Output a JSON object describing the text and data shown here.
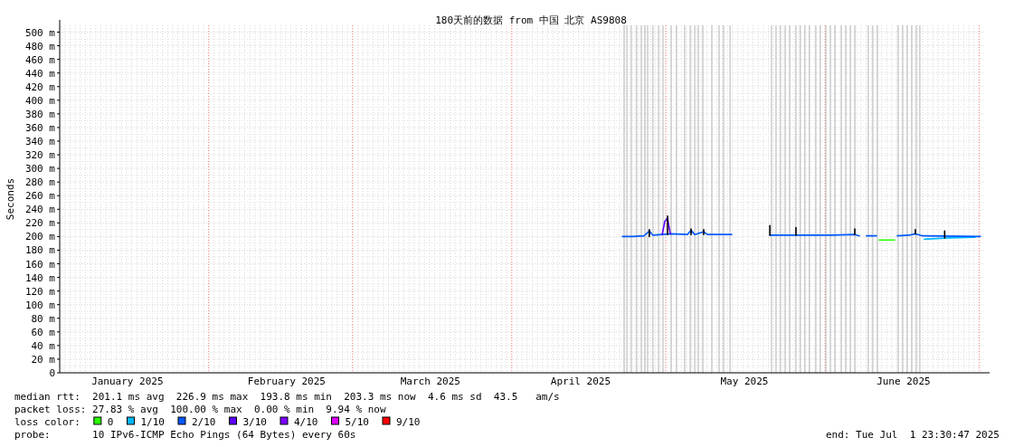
{
  "chart_data": {
    "type": "line",
    "title": "180天前的数据 from 中国 北京 AS9808",
    "ylabel": "Seconds",
    "xlim": [
      "2025-01-02T23:30",
      "2025-07-01T23:30"
    ],
    "xticks": [
      {
        "value": "2025-01-16T04:00",
        "label": "January 2025"
      },
      {
        "value": "2025-02-16T04:00",
        "label": "February 2025"
      },
      {
        "value": "2025-03-16T04:00",
        "label": "March 2025"
      },
      {
        "value": "2025-04-14T10:00",
        "label": "April 2025"
      },
      {
        "value": "2025-05-16T07:00",
        "label": "May 2025"
      },
      {
        "value": "2025-06-16T07:00",
        "label": "June 2025"
      }
    ],
    "ylim": [
      0,
      510
    ],
    "yticks": [
      0,
      {
        "value": 20,
        "label": "20 m"
      },
      {
        "value": 40,
        "label": "40 m"
      },
      {
        "value": 60,
        "label": "60 m"
      },
      {
        "value": 80,
        "label": "80 m"
      },
      {
        "value": 100,
        "label": "100 m"
      },
      {
        "value": 120,
        "label": "120 m"
      },
      {
        "value": 140,
        "label": "140 m"
      },
      {
        "value": 160,
        "label": "160 m"
      },
      {
        "value": 180,
        "label": "180 m"
      },
      {
        "value": 200,
        "label": "200 m"
      },
      {
        "value": 220,
        "label": "220 m"
      },
      {
        "value": 240,
        "label": "240 m"
      },
      {
        "value": 260,
        "label": "260 m"
      },
      {
        "value": 280,
        "label": "280 m"
      },
      {
        "value": 300,
        "label": "300 m"
      },
      {
        "value": 320,
        "label": "320 m"
      },
      {
        "value": 340,
        "label": "340 m"
      },
      {
        "value": 360,
        "label": "360 m"
      },
      {
        "value": 380,
        "label": "380 m"
      },
      {
        "value": 400,
        "label": "400 m"
      },
      {
        "value": 420,
        "label": "420 m"
      },
      {
        "value": 440,
        "label": "440 m"
      },
      {
        "value": 460,
        "label": "460 m"
      },
      {
        "value": 480,
        "label": "480 m"
      },
      {
        "value": 500,
        "label": "500 m"
      }
    ],
    "grid": true,
    "legend": "bottom",
    "legend_title": "loss color:",
    "series": [
      {
        "name": "0",
        "color": "#26ff00",
        "x": [
          "2025-06-11T13:00",
          "2025-06-14T13:00"
        ],
        "values": [
          195,
          195
        ]
      },
      {
        "name": "1/10",
        "color": "#00b8ff",
        "x": [
          "2025-06-20T08:00",
          "2025-06-22T15:00",
          "2025-06-25T07:00",
          "2025-06-30T05:00"
        ],
        "values": [
          196,
          197,
          198,
          199
        ]
      },
      {
        "name": "2/10",
        "color": "#0059ff",
        "x": [
          "2025-04-22T13:00",
          "2025-04-24T15:00",
          "2025-04-26T18:00",
          "2025-04-27T19:00",
          "2025-04-28T12:00",
          "2025-04-30T07:00",
          "2025-05-01T21:00",
          "2025-05-05T05:00",
          "2025-05-05T22:00",
          "2025-05-06T15:00",
          "2025-05-08T09:00",
          "2025-05-09T02:00",
          "2025-05-13T20:00",
          "2025-05-17T00:00",
          "2025-05-21T06:00",
          "2025-05-26T08:00",
          "2025-06-02T09:00",
          "2025-06-06T19:00",
          "2025-06-07T16:00",
          "2025-06-08T09:00",
          "2025-06-09T02:00",
          "2025-06-11T00:00",
          "2025-06-13T00:00",
          "2025-06-15T02:00",
          "2025-06-17T08:00",
          "2025-06-18T14:00",
          "2025-06-20T00:00",
          "2025-07-01T06:00"
        ],
        "values": [
          200,
          200,
          201,
          208,
          202,
          203,
          204,
          203,
          209,
          203,
          207,
          203,
          203,
          null,
          202,
          202,
          202,
          203,
          201,
          null,
          201,
          201,
          null,
          201,
          202,
          204,
          201,
          200
        ]
      },
      {
        "name": "3/10",
        "color": "#5e00ff",
        "x": [
          "2025-04-30T07:00",
          "2025-04-30T19:00",
          "2025-05-01T08:00",
          "2025-05-01T21:00"
        ],
        "values": [
          203,
          222,
          227,
          204
        ]
      },
      {
        "name": "4/10",
        "color": "#7e00ff"
      },
      {
        "name": "5/10",
        "color": "#dd00ff"
      },
      {
        "name": "9/10",
        "color": "#ff0000"
      },
      {
        "color": "#000000",
        "x": [
          "2025-04-27T19:00",
          "2025-04-27T19:00",
          "2025-04-28T00:00",
          "2025-05-01T08:00",
          "2025-05-01T08:00",
          "2025-05-02T00:00",
          "2025-05-05T22:00",
          "2025-05-05T22:00",
          "2025-05-06T00:00",
          "2025-05-08T09:00",
          "2025-05-08T09:00",
          "2025-05-09T00:00",
          "2025-05-21T06:00",
          "2025-05-21T06:00",
          "2025-05-22T00:00",
          "2025-05-26T08:00",
          "2025-05-26T08:00",
          "2025-05-27T00:00",
          "2025-06-06T19:00",
          "2025-06-06T19:00",
          "2025-06-07T00:00",
          "2025-06-18T14:00",
          "2025-06-18T14:00",
          "2025-06-19T00:00",
          "2025-06-24T07:00",
          "2025-06-24T07:00"
        ],
        "values": [
          200,
          210,
          null,
          203,
          230,
          null,
          203,
          211,
          null,
          203,
          210,
          null,
          202,
          216,
          null,
          202,
          213,
          null,
          203,
          211,
          null,
          204,
          210,
          null,
          198,
          208
        ]
      }
    ],
    "ref_lines": [
      {
        "axis": "x",
        "value": "2025-02-01",
        "color": "#ff8080",
        "line_style": "dotted"
      },
      {
        "axis": "x",
        "value": "2025-03-01",
        "color": "#ff8080",
        "line_style": "dotted"
      },
      {
        "axis": "x",
        "value": "2025-04-01",
        "color": "#ff8080",
        "line_style": "dotted"
      },
      {
        "axis": "x",
        "value": "2025-05-01",
        "color": "#ff8080",
        "line_style": "dotted"
      },
      {
        "axis": "x",
        "value": "2025-06-01",
        "color": "#ff8080",
        "line_style": "dotted"
      },
      {
        "axis": "x",
        "value": "2025-07-01",
        "color": "#ff8080",
        "line_style": "dotted"
      },
      {
        "axis": "x",
        "value": "2025-04-22T21:00",
        "color": "#b4b4b4"
      },
      {
        "axis": "x",
        "value": "2025-04-23T10:00",
        "color": "#b4b4b4"
      },
      {
        "axis": "x",
        "value": "2025-04-24T07:00",
        "color": "#b4b4b4"
      },
      {
        "axis": "x",
        "value": "2025-04-25T08:00",
        "color": "#b4b4b4"
      },
      {
        "axis": "x",
        "value": "2025-04-26T06:00",
        "color": "#b4b4b4"
      },
      {
        "axis": "x",
        "value": "2025-04-26T22:00",
        "color": "#b4b4b4"
      },
      {
        "axis": "x",
        "value": "2025-04-27T11:00",
        "color": "#b4b4b4"
      },
      {
        "axis": "x",
        "value": "2025-04-28T12:00",
        "color": "#b4b4b4"
      },
      {
        "axis": "x",
        "value": "2025-04-29T14:00",
        "color": "#b4b4b4"
      },
      {
        "axis": "x",
        "value": "2025-04-30T11:00",
        "color": "#b4b4b4"
      },
      {
        "axis": "x",
        "value": "2025-05-02T01:00",
        "color": "#b4b4b4"
      },
      {
        "axis": "x",
        "value": "2025-05-03T02:00",
        "color": "#b4b4b4"
      },
      {
        "axis": "x",
        "value": "2025-05-04T16:00",
        "color": "#b4b4b4"
      },
      {
        "axis": "x",
        "value": "2025-05-05T18:00",
        "color": "#b4b4b4"
      },
      {
        "axis": "x",
        "value": "2025-05-06T15:00",
        "color": "#b4b4b4"
      },
      {
        "axis": "x",
        "value": "2025-05-07T08:00",
        "color": "#b4b4b4"
      },
      {
        "axis": "x",
        "value": "2025-05-08T05:00",
        "color": "#b4b4b4"
      },
      {
        "axis": "x",
        "value": "2025-05-09T23:00",
        "color": "#b4b4b4"
      },
      {
        "axis": "x",
        "value": "2025-05-11T09:00",
        "color": "#b4b4b4"
      },
      {
        "axis": "x",
        "value": "2025-05-12T06:00",
        "color": "#b4b4b4"
      },
      {
        "axis": "x",
        "value": "2025-05-13T12:00",
        "color": "#b4b4b4"
      },
      {
        "axis": "x",
        "value": "2025-05-21T14:00",
        "color": "#b4b4b4"
      },
      {
        "axis": "x",
        "value": "2025-05-22T11:00",
        "color": "#b4b4b4"
      },
      {
        "axis": "x",
        "value": "2025-05-23T08:00",
        "color": "#b4b4b4"
      },
      {
        "axis": "x",
        "value": "2025-05-24T06:00",
        "color": "#b4b4b4"
      },
      {
        "axis": "x",
        "value": "2025-05-25T03:00",
        "color": "#b4b4b4"
      },
      {
        "axis": "x",
        "value": "2025-05-26T08:00",
        "color": "#b4b4b4"
      },
      {
        "axis": "x",
        "value": "2025-05-27T05:00",
        "color": "#b4b4b4"
      },
      {
        "axis": "x",
        "value": "2025-05-28T02:00",
        "color": "#b4b4b4"
      },
      {
        "axis": "x",
        "value": "2025-05-28T23:00",
        "color": "#b4b4b4"
      },
      {
        "axis": "x",
        "value": "2025-05-30T05:00",
        "color": "#b4b4b4"
      },
      {
        "axis": "x",
        "value": "2025-05-31T02:00",
        "color": "#b4b4b4"
      },
      {
        "axis": "x",
        "value": "2025-06-01T04:00",
        "color": "#b4b4b4"
      },
      {
        "axis": "x",
        "value": "2025-06-02T01:00",
        "color": "#b4b4b4"
      },
      {
        "axis": "x",
        "value": "2025-06-02T22:00",
        "color": "#b4b4b4"
      },
      {
        "axis": "x",
        "value": "2025-06-04T04:00",
        "color": "#b4b4b4"
      },
      {
        "axis": "x",
        "value": "2025-06-05T01:00",
        "color": "#b4b4b4"
      },
      {
        "axis": "x",
        "value": "2025-06-05T22:00",
        "color": "#b4b4b4"
      },
      {
        "axis": "x",
        "value": "2025-06-06T19:00",
        "color": "#b4b4b4"
      },
      {
        "axis": "x",
        "value": "2025-06-09T10:00",
        "color": "#b4b4b4"
      },
      {
        "axis": "x",
        "value": "2025-06-10T07:00",
        "color": "#b4b4b4"
      },
      {
        "axis": "x",
        "value": "2025-06-11T05:00",
        "color": "#b4b4b4"
      },
      {
        "axis": "x",
        "value": "2025-06-15T06:00",
        "color": "#b4b4b4"
      },
      {
        "axis": "x",
        "value": "2025-06-16T03:00",
        "color": "#b4b4b4"
      },
      {
        "axis": "x",
        "value": "2025-06-17T00:00",
        "color": "#b4b4b4"
      },
      {
        "axis": "x",
        "value": "2025-06-17T21:00",
        "color": "#b4b4b4"
      },
      {
        "axis": "x",
        "value": "2025-06-18T18:00",
        "color": "#b4b4b4"
      },
      {
        "axis": "x",
        "value": "2025-06-19T11:00",
        "color": "#b4b4b4"
      }
    ],
    "annotations": [
      "median rtt:  201.1 ms avg  226.9 ms max  193.8 ms min  203.3 ms now  4.6 ms sd  43.5   am/s",
      "packet loss: 27.83 % avg  100.00 % max  0.00 % min  9.94 % now",
      "probe:       10 IPv6-ICMP Echo Pings (64 Bytes) every 60s",
      "end: Tue Jul  1 23:30:47 2025"
    ]
  }
}
